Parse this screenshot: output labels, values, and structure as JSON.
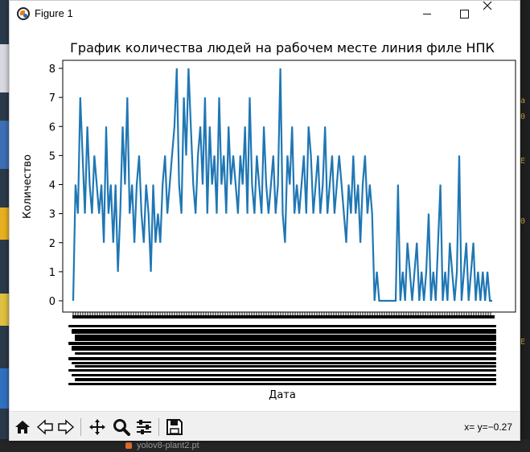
{
  "window": {
    "title": "Figure 1",
    "minimize_icon": "minimize-icon",
    "maximize_icon": "maximize-icon",
    "close_icon": "close-icon"
  },
  "chart_data": {
    "type": "line",
    "title": "График количества людей на рабочем месте линия филе НПК",
    "xlabel": "Дата",
    "ylabel": "Количество",
    "ylim": [
      0,
      8
    ],
    "yticks": [
      0,
      1,
      2,
      3,
      4,
      5,
      6,
      7,
      8
    ],
    "line_color": "#1f77b4",
    "x_tick_labels_legible": false,
    "series": [
      {
        "values": [
          0,
          4,
          3,
          7,
          5,
          3,
          6,
          4,
          3,
          5,
          4,
          3,
          4,
          2,
          6,
          3,
          4,
          2,
          4,
          1,
          3,
          6,
          4,
          7,
          3,
          4,
          2,
          4,
          5,
          3,
          2,
          4,
          3,
          1,
          4,
          2,
          3,
          2,
          4,
          5,
          3,
          4,
          5,
          6,
          8,
          4,
          3,
          7,
          5,
          8,
          6,
          4,
          3,
          5,
          6,
          4,
          7,
          3,
          6,
          4,
          5,
          3,
          7,
          4,
          5,
          3,
          6,
          4,
          5,
          4,
          3,
          5,
          4,
          6,
          3,
          7,
          4,
          3,
          5,
          4,
          3,
          6,
          4,
          3,
          4,
          5,
          3,
          4,
          8,
          3,
          2,
          5,
          4,
          6,
          3,
          4,
          3,
          4,
          5,
          3,
          6,
          5,
          3,
          4,
          5,
          3,
          4,
          6,
          3,
          4,
          5,
          3,
          4,
          5,
          4,
          3,
          2,
          4,
          3,
          5,
          3,
          4,
          2,
          4,
          5,
          3,
          4,
          3,
          0,
          1,
          0,
          0,
          0,
          0,
          0,
          0,
          0,
          0,
          4,
          0,
          1,
          0,
          2,
          1,
          0,
          1,
          2,
          0,
          1,
          0,
          1,
          3,
          0,
          1,
          0,
          2,
          4,
          0,
          1,
          0,
          2,
          1,
          0,
          1,
          5,
          0,
          1,
          2,
          0,
          1,
          2,
          0,
          1,
          0,
          1,
          0,
          1,
          0,
          0
        ]
      }
    ]
  },
  "toolbar": {
    "home_icon": "home-icon",
    "back_icon": "back-arrow-icon",
    "forward_icon": "forward-arrow-icon",
    "pan_icon": "pan-icon",
    "zoom_icon": "zoom-icon",
    "configure_icon": "configure-subplots-icon",
    "save_icon": "save-icon",
    "coords": "x= y=−0.27"
  },
  "background": {
    "taskbar_file": "yolov8-plant2.pt"
  }
}
